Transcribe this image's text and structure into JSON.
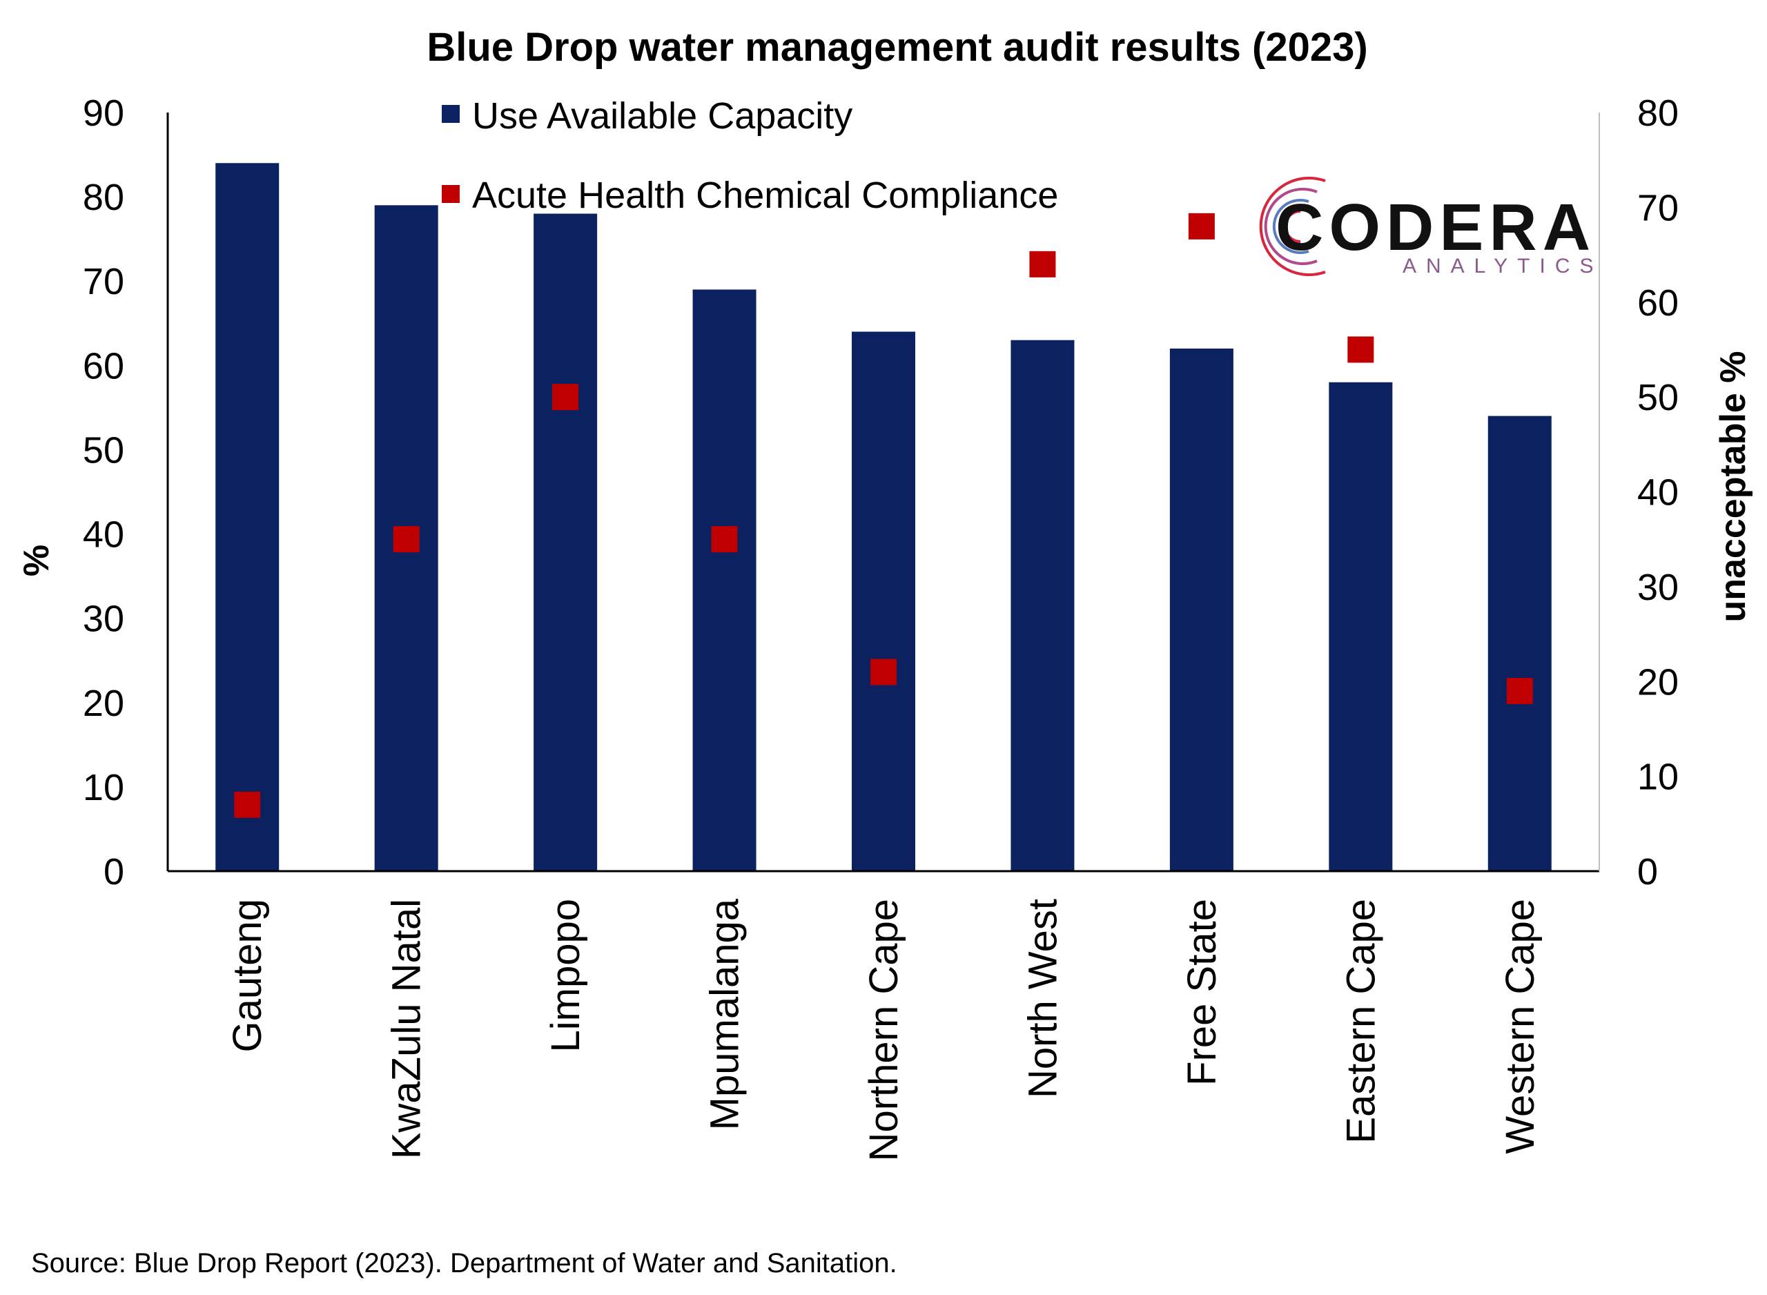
{
  "chart_data": {
    "type": "bar",
    "title": "Blue Drop water management audit results (2023)",
    "categories": [
      "Gauteng",
      "KwaZulu Natal",
      "Limpopo",
      "Mpumalanga",
      "Northern Cape",
      "North West",
      "Free State",
      "Eastern Cape",
      "Western Cape"
    ],
    "series": [
      {
        "name": "Use Available Capacity",
        "type": "bar",
        "axis": "left",
        "color": "#0b2160",
        "values": [
          84,
          79,
          78,
          69,
          64,
          63,
          62,
          58,
          54
        ]
      },
      {
        "name": "Acute Health Chemical Compliance",
        "type": "scatter",
        "axis": "right",
        "color": "#c00000",
        "values": [
          7,
          35,
          50,
          35,
          21,
          64,
          68,
          55,
          19
        ]
      }
    ],
    "ylabel": "%",
    "ylim": [
      0,
      90
    ],
    "yticks": [
      "0",
      "10",
      "20",
      "30",
      "40",
      "50",
      "60",
      "70",
      "80",
      "90"
    ],
    "y2label": "unacceptable %",
    "y2lim": [
      0,
      80
    ],
    "y2ticks": [
      "0",
      "10",
      "20",
      "30",
      "40",
      "50",
      "60",
      "70",
      "80"
    ],
    "legend": "top-center",
    "grid": false
  },
  "logo": {
    "name": "CODERA",
    "subtitle": "ANALYTICS"
  },
  "source": "Source: Blue Drop Report (2023). Department of Water and Sanitation."
}
